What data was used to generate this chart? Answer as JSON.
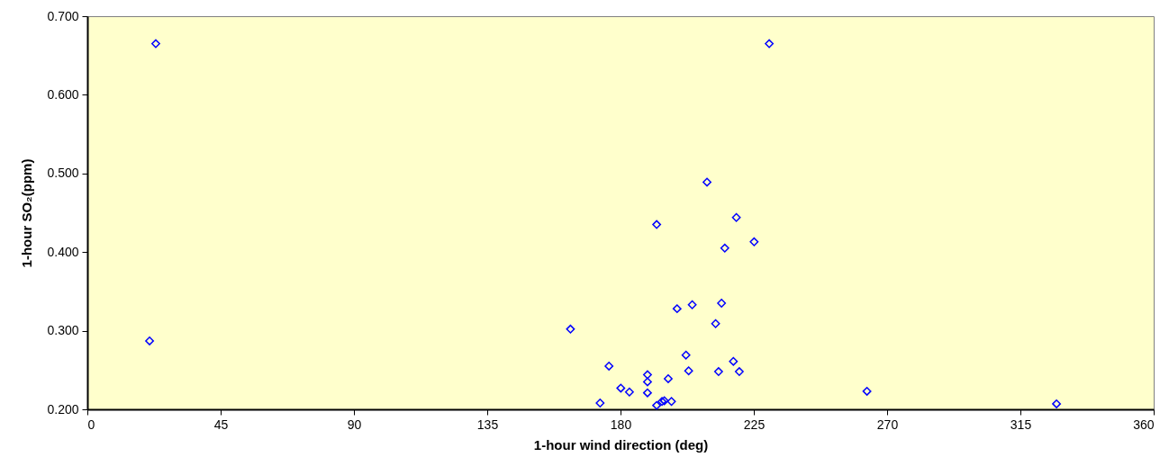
{
  "chart_data": {
    "type": "scatter",
    "xlabel": "1-hour wind direction (deg)",
    "ylabel": "1-hour SO₂(ppm)",
    "x": [
      23.1,
      21.0,
      230.2,
      209.2,
      192.2,
      219.1,
      225.1,
      215.2,
      163.1,
      199.1,
      204.2,
      214.1,
      212.1,
      176.1,
      202.1,
      218.1,
      189.1,
      203.0,
      213.1,
      220.1,
      189.1,
      196.1,
      180.1,
      183.0,
      189.1,
      173.1,
      192.2,
      194.0,
      194.8,
      197.2,
      263.2,
      327.2
    ],
    "series": [
      {
        "color": "#0000ff",
        "values": [
          0.665,
          0.287,
          0.665,
          0.489,
          0.435,
          0.444,
          0.413,
          0.405,
          0.302,
          0.328,
          0.333,
          0.335,
          0.309,
          0.255,
          0.269,
          0.261,
          0.244,
          0.249,
          0.248,
          0.248,
          0.235,
          0.239,
          0.227,
          0.222,
          0.221,
          0.208,
          0.205,
          0.21,
          0.211,
          0.21,
          0.223,
          0.207
        ]
      }
    ],
    "xlim": [
      0,
      360
    ],
    "xticks": [
      0,
      45,
      90,
      135,
      180,
      225,
      270,
      315,
      360
    ],
    "ylim": [
      0.2,
      0.7
    ],
    "yticks": [
      {
        "value": 0.2,
        "label": "0.200"
      },
      {
        "value": 0.3,
        "label": "0.300"
      },
      {
        "value": 0.4,
        "label": "0.400"
      },
      {
        "value": 0.5,
        "label": "0.500"
      },
      {
        "value": 0.6,
        "label": "0.600"
      },
      {
        "value": 0.7,
        "label": "0.700"
      }
    ],
    "marker": "diamond",
    "grid": false
  }
}
